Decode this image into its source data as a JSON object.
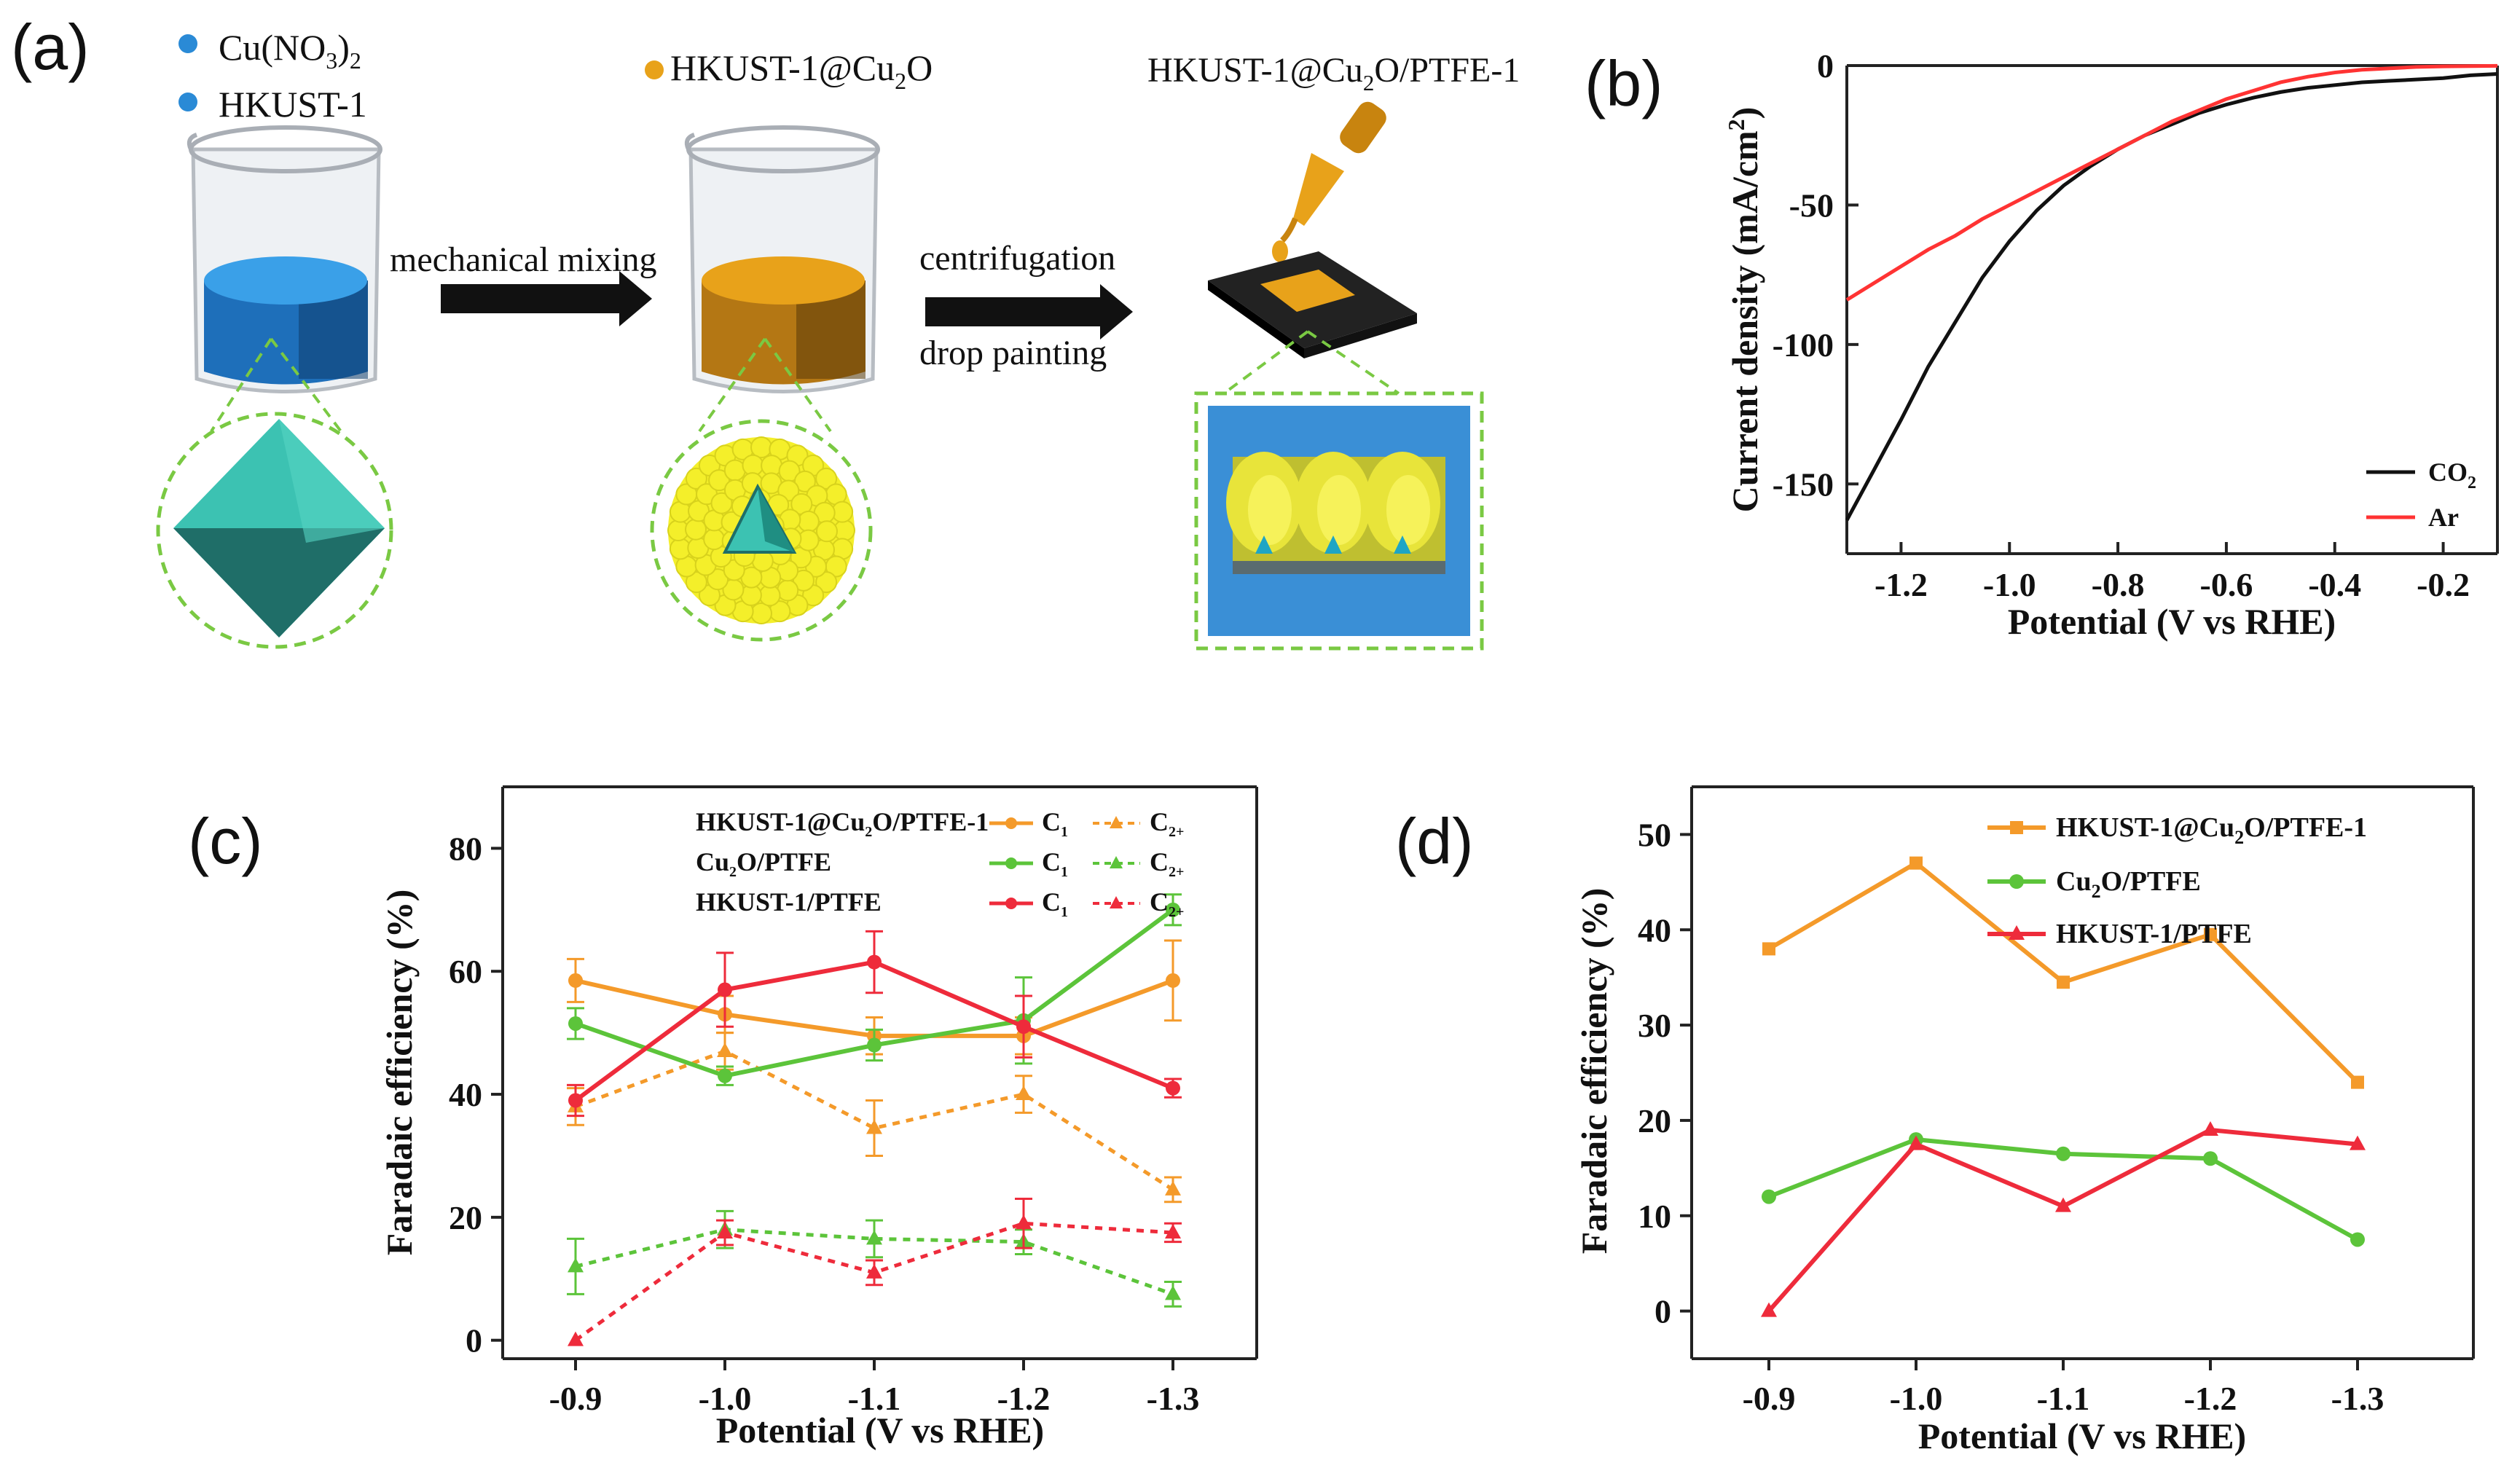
{
  "colors": {
    "orange": "#f49a2a",
    "green": "#5cc43a",
    "red": "#ee2b3b",
    "black": "#111111",
    "ar_red": "#ff3333",
    "blue": "#2a8ad6",
    "dark_blue": "#1a4f86",
    "gold": "#e8a21a",
    "dark_gold": "#8a5a10",
    "yellow": "#f4ef2a",
    "teal": "#3cc2b2",
    "dashed_green": "#7ac943",
    "substrate_blue": "#3a8fd6"
  },
  "panel_a": {
    "label": "(a)",
    "reagent_1": "Cu(NO",
    "reagent_1_sub": "3",
    "reagent_1_close": ")",
    "reagent_1_sub2": "2",
    "reagent_2": "HKUST-1",
    "composite": "HKUST-1@Cu",
    "composite_sub": "2",
    "composite_tail": "O",
    "electrode": "HKUST-1@Cu",
    "electrode_sub": "2",
    "electrode_tail": "O/PTFE-1",
    "step_1": "mechanical mixing",
    "step_2a": "centrifugation",
    "step_2b": "drop painting"
  },
  "chart_data": [
    {
      "panel": "(b)",
      "type": "line",
      "xlabel": "Potential (V vs RHE)",
      "ylabel_main": "Current density (mA/cm",
      "ylabel_sup": "2",
      "ylabel_tail": ")",
      "xlim": [
        -1.3,
        -0.1
      ],
      "ylim": [
        -175,
        0
      ],
      "x_ticks": [
        -1.2,
        -1.0,
        -0.8,
        -0.6,
        -0.4,
        -0.2
      ],
      "x_tick_labels": [
        "-1.2",
        "-1.0",
        "-0.8",
        "-0.6",
        "-0.4",
        "-0.2"
      ],
      "y_ticks": [
        0,
        -50,
        -100,
        -150
      ],
      "y_tick_labels": [
        "0",
        "-50",
        "-100",
        "-150"
      ],
      "legend": [
        {
          "name": "CO",
          "sub": "2"
        },
        {
          "name": "Ar",
          "sub": ""
        }
      ],
      "series": [
        {
          "name": "CO2",
          "x": [
            -1.3,
            -1.25,
            -1.2,
            -1.15,
            -1.1,
            -1.05,
            -1.0,
            -0.95,
            -0.9,
            -0.85,
            -0.8,
            -0.75,
            -0.7,
            -0.65,
            -0.6,
            -0.55,
            -0.5,
            -0.45,
            -0.4,
            -0.35,
            -0.3,
            -0.25,
            -0.2,
            -0.15,
            -0.1
          ],
          "y": [
            -163,
            -145,
            -127,
            -108,
            -92,
            -76,
            -63,
            -52,
            -43,
            -36,
            -30,
            -25,
            -21,
            -17,
            -14,
            -11.5,
            -9.5,
            -8,
            -7,
            -6,
            -5.5,
            -5,
            -4.5,
            -3.5,
            -3
          ]
        },
        {
          "name": "Ar",
          "x": [
            -1.3,
            -1.25,
            -1.2,
            -1.15,
            -1.1,
            -1.05,
            -1.0,
            -0.95,
            -0.9,
            -0.85,
            -0.8,
            -0.75,
            -0.7,
            -0.65,
            -0.6,
            -0.55,
            -0.5,
            -0.45,
            -0.4,
            -0.35,
            -0.3,
            -0.25,
            -0.2,
            -0.15,
            -0.1
          ],
          "y": [
            -84,
            -78,
            -72,
            -66,
            -61,
            -55,
            -50,
            -45,
            -40,
            -35,
            -30,
            -25,
            -20,
            -16,
            -12,
            -9,
            -6,
            -4,
            -2.5,
            -1.5,
            -1,
            -0.5,
            -0.3,
            -0.2,
            -0.1
          ]
        }
      ]
    },
    {
      "panel": "(c)",
      "type": "line",
      "xlabel": "Potential (V vs RHE)",
      "ylabel": "Faradaic efficiency (%)",
      "categories": [
        "-0.9",
        "-1.0",
        "-1.1",
        "-1.2",
        "-1.3"
      ],
      "ylim": [
        -3,
        90
      ],
      "y_ticks": [
        0,
        20,
        40,
        60,
        80
      ],
      "y_tick_labels": [
        "0",
        "20",
        "40",
        "60",
        "80"
      ],
      "legend_labels": [
        {
          "main": "HKUST-1@Cu",
          "sub": "2",
          "tail": "O/PTFE-1"
        },
        {
          "main": "Cu",
          "sub": "2",
          "tail": "O/PTFE"
        },
        {
          "main": "HKUST-1/PTFE",
          "sub": "",
          "tail": ""
        }
      ],
      "legend_c1": {
        "main": "C",
        "sub": "1"
      },
      "legend_c2": {
        "main": "C",
        "sub": "2+"
      },
      "series": [
        {
          "name": "HKUST-1@Cu2O/PTFE-1 C1",
          "color": "orange",
          "dash": false,
          "marker": "circle",
          "values": [
            58.5,
            53,
            49.5,
            49.5,
            58.5
          ],
          "err": [
            3.5,
            3,
            3,
            3,
            6.5
          ]
        },
        {
          "name": "HKUST-1@Cu2O/PTFE-1 C2+",
          "color": "orange",
          "dash": true,
          "marker": "triangle",
          "values": [
            38,
            47,
            34.5,
            40,
            24.5
          ],
          "err": [
            3,
            3,
            4.5,
            3,
            2
          ]
        },
        {
          "name": "Cu2O/PTFE C1",
          "color": "green",
          "dash": false,
          "marker": "circle",
          "values": [
            51.5,
            43,
            48,
            52,
            70
          ],
          "err": [
            2.5,
            1.5,
            2.5,
            7,
            2.5
          ]
        },
        {
          "name": "Cu2O/PTFE C2+",
          "color": "green",
          "dash": true,
          "marker": "triangle",
          "values": [
            12,
            18,
            16.5,
            16,
            7.5
          ],
          "err": [
            4.5,
            3,
            3,
            2,
            2
          ]
        },
        {
          "name": "HKUST-1/PTFE C1",
          "color": "red",
          "dash": false,
          "marker": "circle",
          "values": [
            39,
            57,
            61.5,
            51,
            41
          ],
          "err": [
            2.5,
            6,
            5,
            5,
            1.5
          ]
        },
        {
          "name": "HKUST-1/PTFE C2+",
          "color": "red",
          "dash": true,
          "marker": "triangle",
          "values": [
            0,
            17.5,
            11,
            19,
            17.5
          ],
          "err": [
            0,
            2,
            2,
            4,
            1.5
          ]
        }
      ]
    },
    {
      "panel": "(d)",
      "type": "line",
      "xlabel": "Potential (V vs RHE)",
      "ylabel": "Faradaic efficiency (%)",
      "categories": [
        "-0.9",
        "-1.0",
        "-1.1",
        "-1.2",
        "-1.3"
      ],
      "ylim": [
        -5,
        55
      ],
      "y_ticks": [
        0,
        10,
        20,
        30,
        40,
        50
      ],
      "y_tick_labels": [
        "0",
        "10",
        "20",
        "30",
        "40",
        "50"
      ],
      "legend_labels": [
        {
          "main": "HKUST-1@Cu",
          "sub": "2",
          "tail": "O/PTFE-1"
        },
        {
          "main": "Cu",
          "sub": "2",
          "tail": "O/PTFE"
        },
        {
          "main": "HKUST-1/PTFE",
          "sub": "",
          "tail": ""
        }
      ],
      "series": [
        {
          "name": "HKUST-1@Cu2O/PTFE-1",
          "color": "orange",
          "marker": "square",
          "values": [
            38,
            47,
            34.5,
            39.5,
            24
          ]
        },
        {
          "name": "Cu2O/PTFE",
          "color": "green",
          "marker": "circle",
          "values": [
            12,
            18,
            16.5,
            16,
            7.5
          ]
        },
        {
          "name": "HKUST-1/PTFE",
          "color": "red",
          "marker": "triangle",
          "values": [
            0,
            17.5,
            11,
            19,
            17.5
          ]
        }
      ]
    }
  ]
}
